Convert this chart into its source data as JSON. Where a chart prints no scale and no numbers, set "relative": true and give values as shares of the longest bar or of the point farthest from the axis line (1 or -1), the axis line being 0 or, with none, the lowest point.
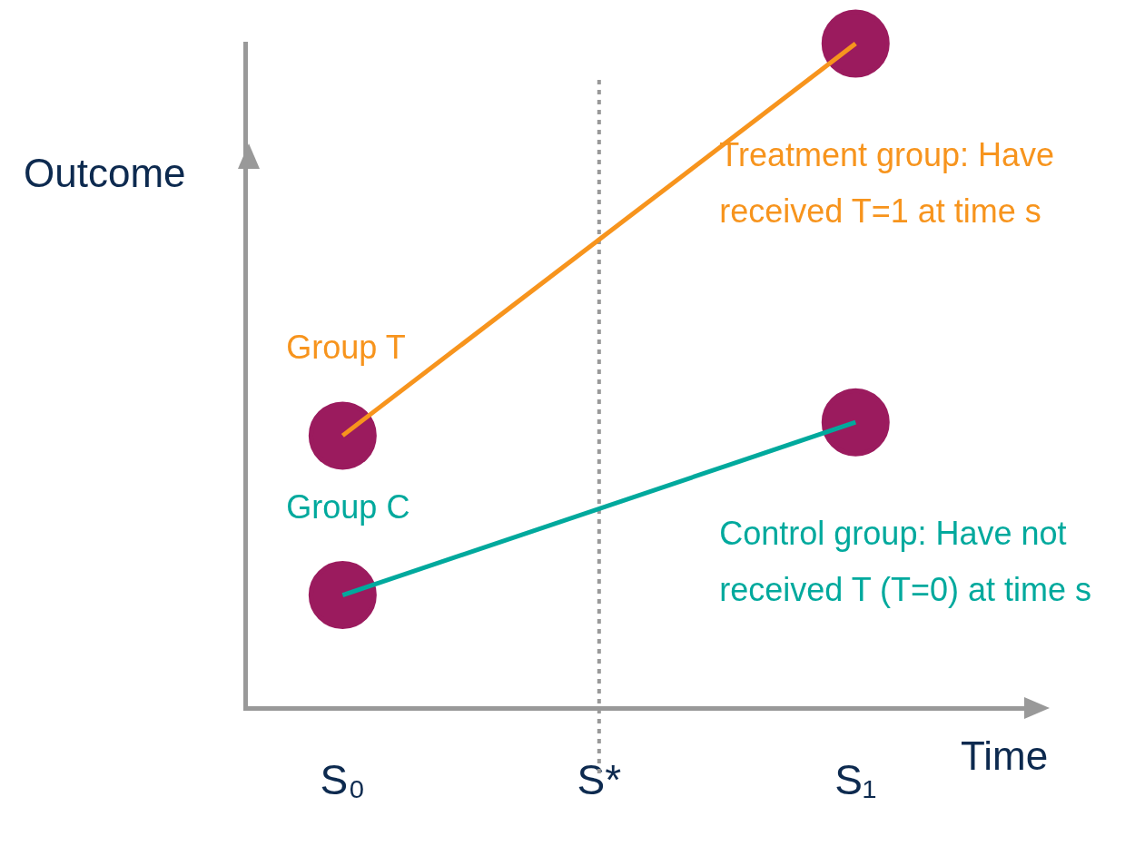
{
  "chart_data": {
    "type": "line",
    "relative": true,
    "xlabel": "Time",
    "ylabel": "Outcome",
    "categories": [
      "S₀",
      "S*",
      "S₁"
    ],
    "series": [
      {
        "name": "Group T",
        "color": "#f7941d",
        "values": [
          0.41,
          null,
          1
        ]
      },
      {
        "name": "Group C",
        "color": "#00a99d",
        "values": [
          0.17,
          null,
          0.43
        ]
      },
      {
        "type": "scatter",
        "color": "#9b1b5e",
        "marker": "circle",
        "values": [
          0.41,
          null,
          1
        ]
      },
      {
        "type": "scatter",
        "color": "#9b1b5e",
        "marker": "circle",
        "values": [
          0.17,
          null,
          0.43
        ]
      }
    ],
    "ref_lines": [
      {
        "axis": "x",
        "value": "S*",
        "color": "#999999",
        "line_style": "dotted"
      }
    ],
    "annotations": [
      "Treatment group: Have received T=1 at time s",
      "Control group: Have not received T (T=0) at time s"
    ],
    "line_style": "solid",
    "grid": false,
    "legend": false
  }
}
